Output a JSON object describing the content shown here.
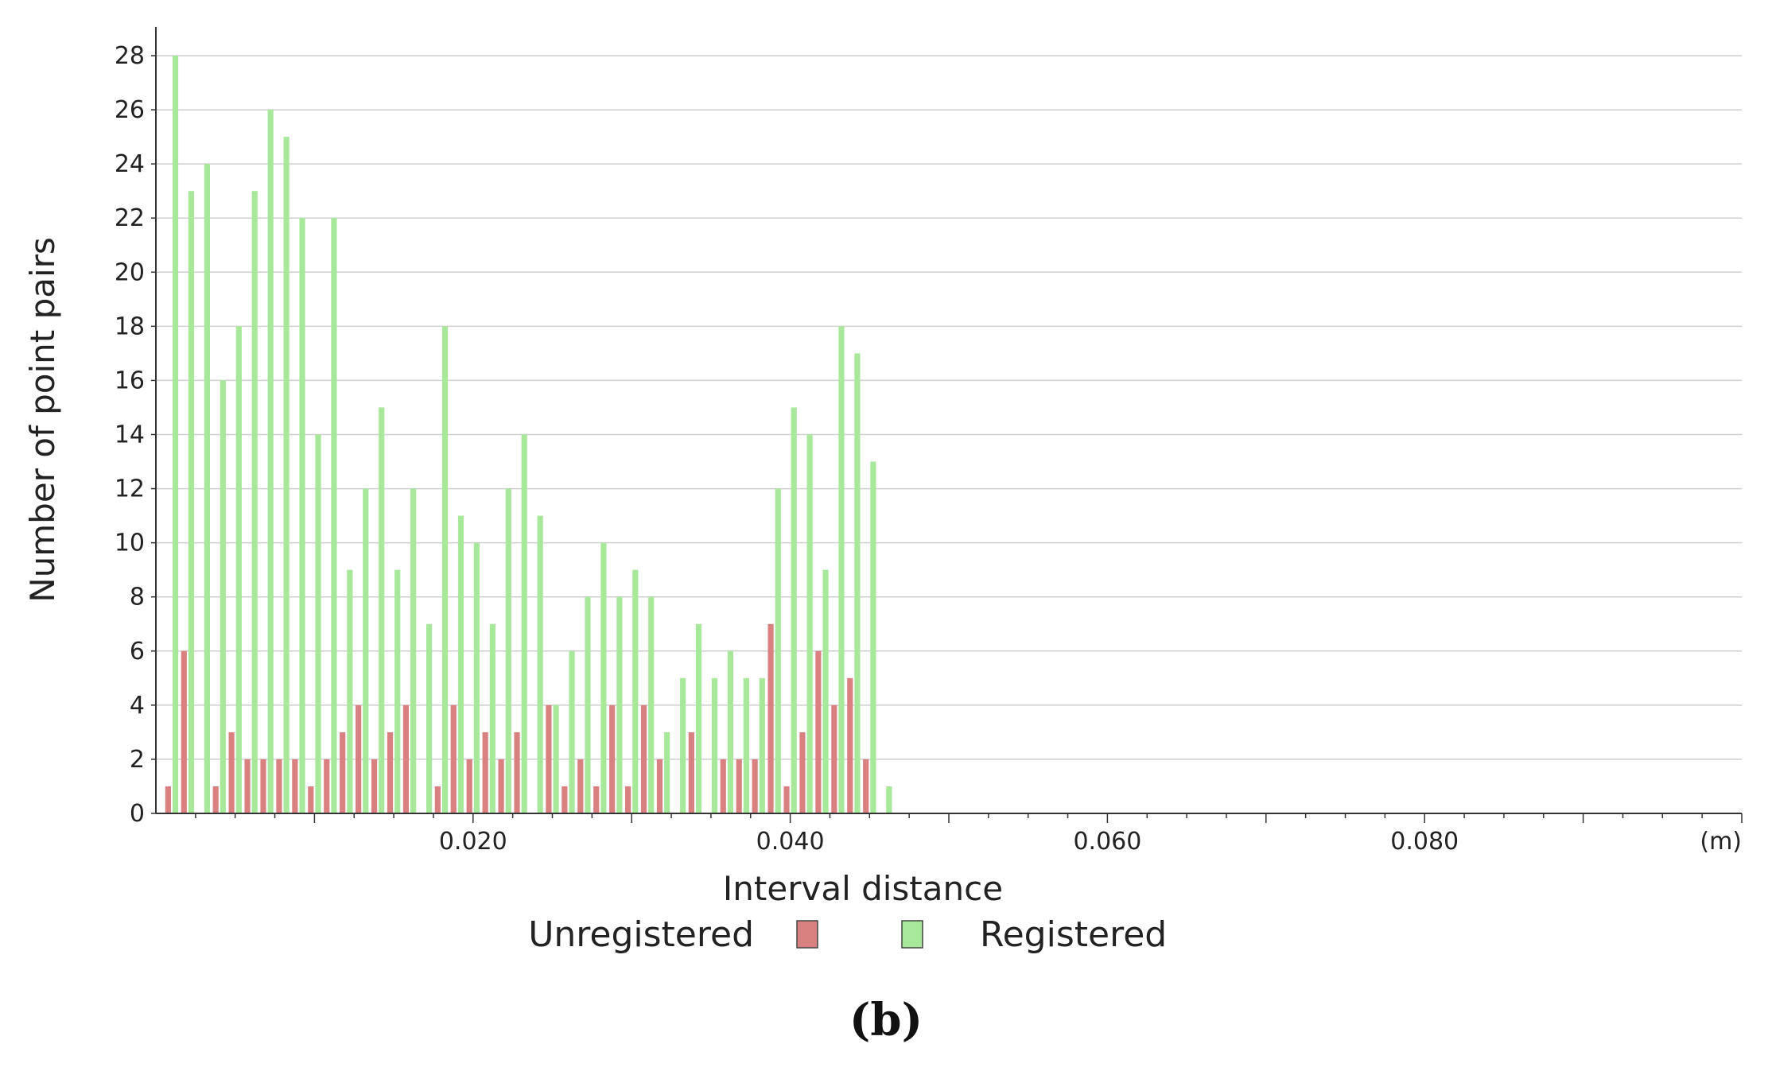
{
  "chart_data": {
    "type": "bar",
    "xlabel": "Interval distance",
    "ylabel": "Number of point pairs",
    "x_unit": "(m)",
    "ylim": [
      0,
      28
    ],
    "xlim": [
      0,
      0.1
    ],
    "y_ticks": [
      "0",
      "2",
      "4",
      "6",
      "8",
      "10",
      "12",
      "14",
      "16",
      "18",
      "20",
      "22",
      "24",
      "26",
      "28"
    ],
    "x_ticks": [
      {
        "value": 0.02,
        "label": "0.020"
      },
      {
        "value": 0.04,
        "label": "0.040"
      },
      {
        "value": 0.06,
        "label": "0.060"
      },
      {
        "value": 0.08,
        "label": "0.080"
      }
    ],
    "bin_width": 0.001,
    "x": [
      0.001,
      0.002,
      0.003,
      0.004,
      0.005,
      0.006,
      0.007,
      0.008,
      0.009,
      0.01,
      0.011,
      0.012,
      0.013,
      0.014,
      0.015,
      0.016,
      0.017,
      0.018,
      0.019,
      0.02,
      0.021,
      0.022,
      0.023,
      0.024,
      0.025,
      0.026,
      0.027,
      0.028,
      0.029,
      0.03,
      0.031,
      0.032,
      0.033,
      0.034,
      0.035,
      0.036,
      0.037,
      0.038,
      0.039,
      0.04,
      0.041,
      0.042,
      0.043,
      0.044,
      0.045,
      0.046
    ],
    "series": [
      {
        "name": "Unregistered",
        "color": "#d98080",
        "values": [
          1,
          6,
          0,
          1,
          3,
          2,
          2,
          2,
          2,
          1,
          2,
          3,
          4,
          2,
          3,
          4,
          0,
          1,
          4,
          2,
          3,
          2,
          3,
          0,
          4,
          1,
          2,
          1,
          4,
          1,
          4,
          2,
          0,
          3,
          0,
          2,
          2,
          2,
          7,
          1,
          3,
          6,
          4,
          5,
          2,
          0
        ]
      },
      {
        "name": "Registered",
        "color": "#a8e89a",
        "values": [
          28,
          23,
          24,
          16,
          18,
          23,
          26,
          25,
          22,
          14,
          22,
          9,
          12,
          15,
          9,
          12,
          7,
          18,
          11,
          10,
          7,
          12,
          14,
          11,
          4,
          6,
          8,
          10,
          8,
          9,
          8,
          3,
          5,
          7,
          5,
          6,
          5,
          5,
          12,
          15,
          14,
          9,
          18,
          17,
          13,
          1
        ]
      }
    ],
    "legend": {
      "position": "bottom-center"
    },
    "grid": true,
    "caption": "(b)"
  }
}
